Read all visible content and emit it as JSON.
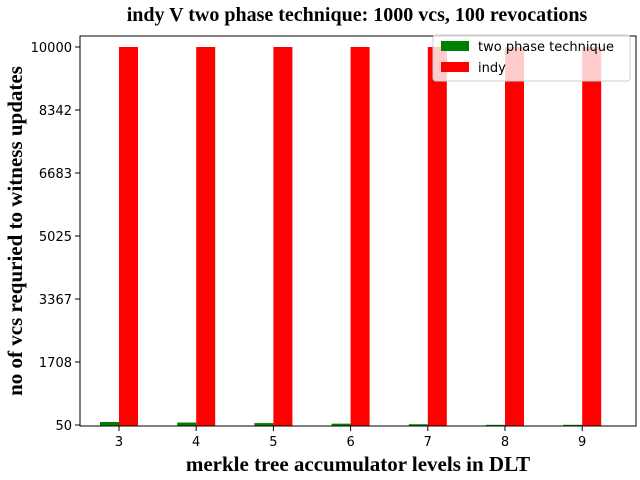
{
  "chart_data": {
    "type": "bar",
    "title": "indy V two phase technique: 1000 vcs, 100 revocations",
    "xlabel": "merkle tree accumulator levels in DLT",
    "ylabel": "no of vcs requried to witness updates",
    "categories": [
      "3",
      "4",
      "5",
      "6",
      "7",
      "8",
      "9"
    ],
    "ylim": [
      50,
      10000
    ],
    "yticks": [
      "50",
      "1708",
      "3367",
      "5025",
      "6683",
      "8342",
      "10000"
    ],
    "series": [
      {
        "name": "two phase technique",
        "color": "#008000",
        "values": [
          130,
          115,
          100,
          85,
          70,
          55,
          55
        ]
      },
      {
        "name": "indy",
        "color": "#ff0000",
        "values": [
          10000,
          10000,
          10000,
          10000,
          10000,
          10000,
          10000
        ]
      }
    ],
    "legend_position": "top-right",
    "grid": false
  }
}
